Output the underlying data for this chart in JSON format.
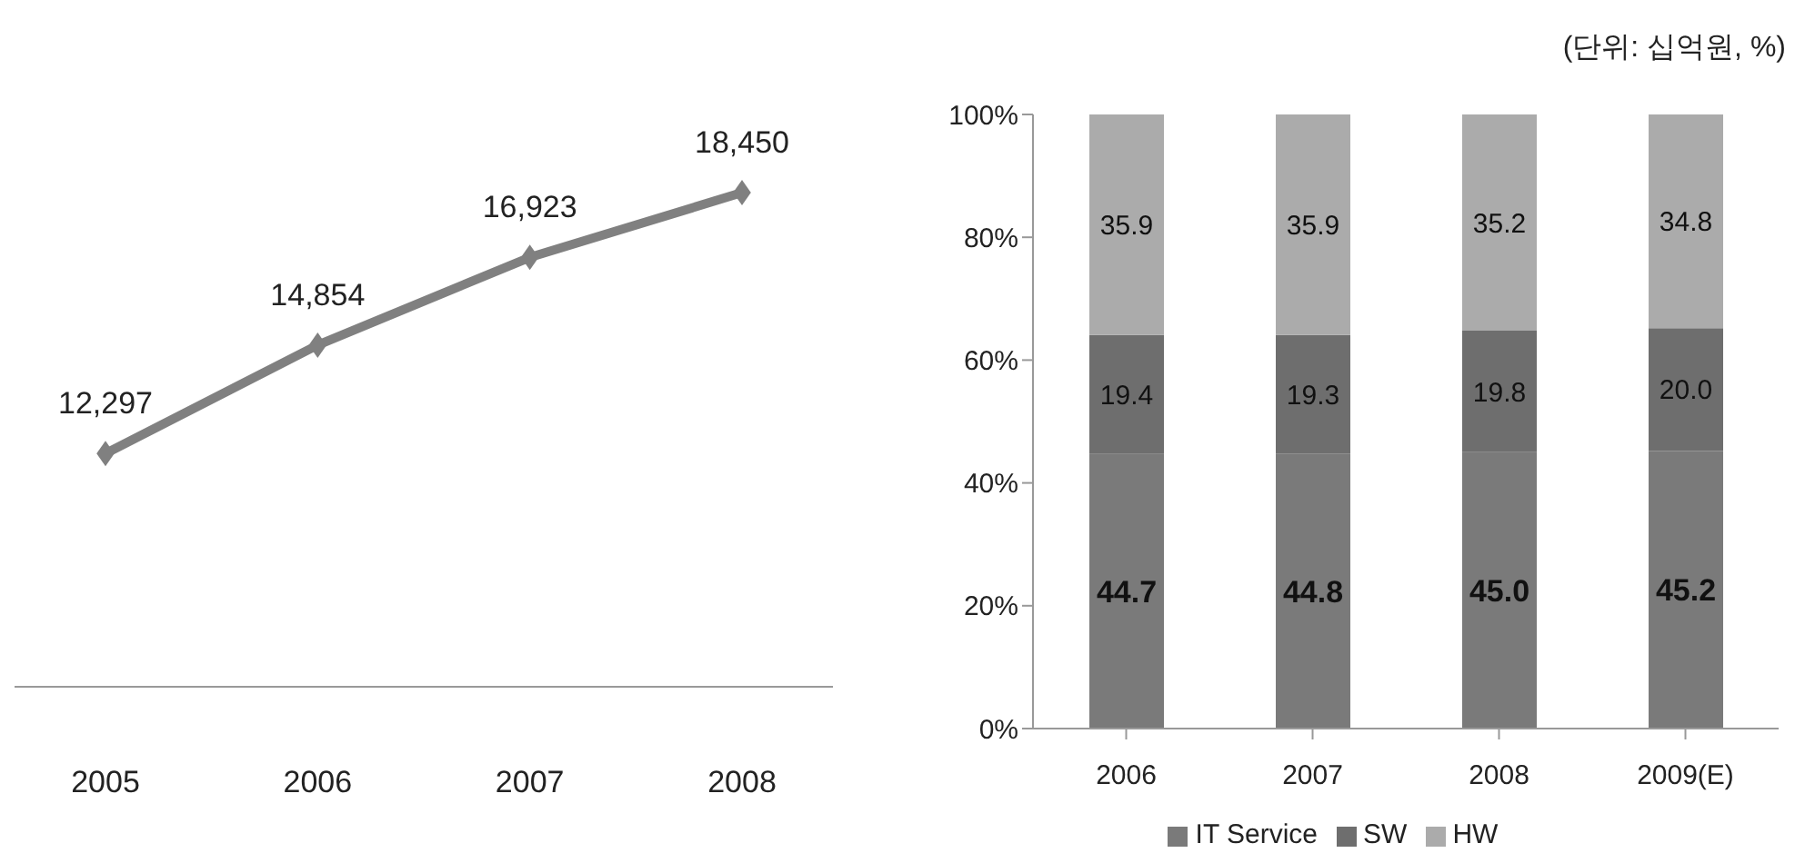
{
  "chart_data": [
    {
      "type": "line",
      "categories": [
        "2005",
        "2006",
        "2007",
        "2008"
      ],
      "values": [
        12297,
        14854,
        16923,
        18450
      ],
      "value_labels": [
        "12,297",
        "14,854",
        "16,923",
        "18,450"
      ],
      "color": "#808080",
      "marker": "diamond",
      "tick_labels": "x",
      "grid": false,
      "legend": false
    },
    {
      "type": "bar",
      "stacked": true,
      "categories": [
        "2006",
        "2007",
        "2008",
        "2009(E)"
      ],
      "series": [
        {
          "name": "IT Service",
          "color": "#7a7a7a",
          "values": [
            44.7,
            44.8,
            45.0,
            45.2
          ],
          "value_labels": [
            "44.7",
            "44.8",
            "45.0",
            "45.2"
          ]
        },
        {
          "name": "SW",
          "color": "#6e6e6e",
          "values": [
            19.4,
            19.3,
            19.8,
            20.0
          ],
          "value_labels": [
            "19.4",
            "19.3",
            "19.8",
            "20.0"
          ]
        },
        {
          "name": "HW",
          "color": "#ababab",
          "values": [
            35.9,
            35.9,
            35.2,
            34.8
          ],
          "value_labels": [
            "35.9",
            "35.9",
            "35.2",
            "34.8"
          ]
        }
      ],
      "ylim": [
        0,
        100
      ],
      "yticks": [
        {
          "value": 0,
          "label": "0%"
        },
        {
          "value": 20,
          "label": "20%"
        },
        {
          "value": 40,
          "label": "40%"
        },
        {
          "value": 60,
          "label": "60%"
        },
        {
          "value": 80,
          "label": "80%"
        },
        {
          "value": 100,
          "label": "100%"
        }
      ],
      "grid": false,
      "legend": "bottom",
      "annotations": [
        "(단위: 십억원, %)"
      ]
    }
  ]
}
